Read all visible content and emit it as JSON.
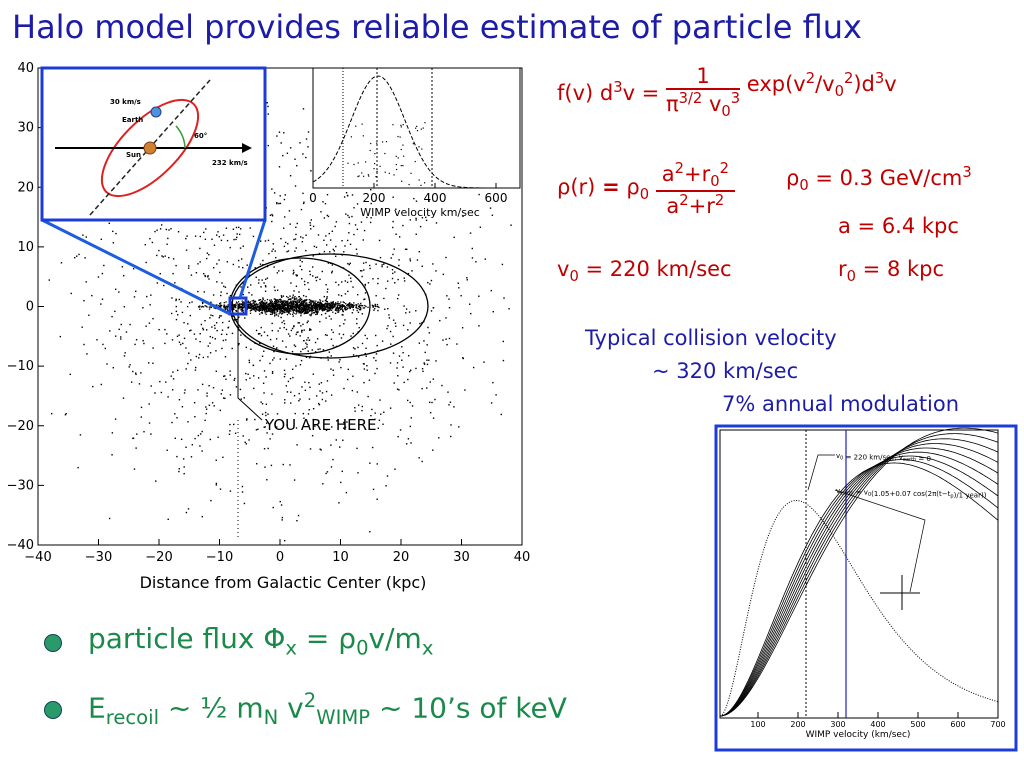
{
  "title": "Halo model provides reliable estimate of particle flux",
  "galaxy_plot": {
    "xticks": [
      "−40",
      "−30",
      "−20",
      "−10",
      "0",
      "10",
      "20",
      "30",
      "40"
    ],
    "yticks": [
      "40",
      "30",
      "20",
      "10",
      "0",
      "−10",
      "−20",
      "−30",
      "−40"
    ],
    "xlabel": "Distance from Galactic Center (kpc)",
    "annotation": "YOU ARE HERE"
  },
  "inset_diagram": {
    "labels": [
      "30 km/s",
      "Earth",
      "Sun",
      "60°",
      "232 km/s"
    ]
  },
  "inset_plot": {
    "xticks": [
      "0",
      "200",
      "400",
      "600"
    ],
    "xlabel": "WIMP velocity km/sec"
  },
  "formulas": {
    "fv": {
      "left": [
        "f(v) d",
        "3",
        "v ="
      ],
      "numerator": [
        "1"
      ],
      "denominator": [
        "π",
        "3/2",
        " v",
        "0",
        "3"
      ],
      "right": [
        "exp(v",
        "2",
        "/v",
        "0",
        "2",
        ")d",
        "3",
        "v"
      ]
    },
    "rho": {
      "left": [
        "ρ",
        "(r)",
        "=",
        "ρ",
        "0"
      ],
      "numerator": [
        "a",
        "2",
        "+r",
        "0",
        "2"
      ],
      "denominator": [
        "a",
        "2",
        "+r",
        "2"
      ]
    },
    "rho0": [
      "ρ",
      "0",
      " = 0.3 GeV/cm",
      "3"
    ],
    "a": [
      "a  = 6.4 kpc"
    ],
    "v0": [
      "v",
      "0",
      " = 220 km/sec"
    ],
    "r0": [
      "r",
      "0",
      " = 8 kpc"
    ]
  },
  "notes": [
    "Typical collision velocity",
    "~ 320 km/sec",
    "7% annual modulation"
  ],
  "modulation_plot": {
    "xticks": [
      "100",
      "200",
      "300",
      "400",
      "500",
      "600",
      "700"
    ],
    "xlabel": "WIMP velocity (km/sec)",
    "labels": [
      [
        "v",
        "0",
        " = 220 km/sec, v",
        "earth",
        " = 0"
      ],
      [
        "v",
        "earth",
        " = v",
        "0",
        "(1.05+0.07 cos(2π(t−t",
        "p",
        ")/1 year))"
      ]
    ]
  },
  "bullets": [
    [
      "particle flux  Φ",
      "x",
      " = ρ",
      "0",
      "v/m",
      "x"
    ],
    [
      "E",
      "recoil",
      " ~ ½ m",
      "N",
      " v",
      "2",
      "WIMP",
      " ~ 10’s of keV"
    ]
  ]
}
